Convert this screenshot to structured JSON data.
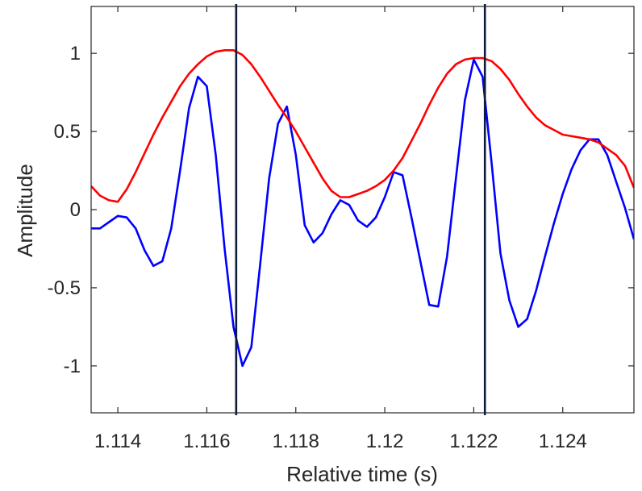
{
  "chart_data": {
    "type": "line",
    "xlabel": "Relative time (s)",
    "ylabel": "Amplitude",
    "xlim": [
      1.1134,
      1.1256
    ],
    "ylim": [
      -1.3,
      1.3
    ],
    "grid": false,
    "box": true,
    "xticks": [
      {
        "value": 1.114,
        "label": "1.114"
      },
      {
        "value": 1.116,
        "label": "1.116"
      },
      {
        "value": 1.118,
        "label": "1.118"
      },
      {
        "value": 1.12,
        "label": "1.12"
      },
      {
        "value": 1.122,
        "label": "1.122"
      },
      {
        "value": 1.124,
        "label": "1.124"
      }
    ],
    "yticks": [
      {
        "value": -1,
        "label": "-1"
      },
      {
        "value": -0.5,
        "label": "-0.5"
      },
      {
        "value": 0,
        "label": "0"
      },
      {
        "value": 0.5,
        "label": "0.5"
      },
      {
        "value": 1,
        "label": "1"
      }
    ],
    "series": [
      {
        "color": "#0000ff",
        "x": [
          1.1134,
          1.1136,
          1.1138,
          1.114,
          1.1142,
          1.1144,
          1.1146,
          1.1148,
          1.115,
          1.1152,
          1.1154,
          1.1156,
          1.1158,
          1.116,
          1.1162,
          1.1164,
          1.1166,
          1.1168,
          1.117,
          1.1172,
          1.1174,
          1.1176,
          1.1178,
          1.118,
          1.1182,
          1.1184,
          1.1186,
          1.1188,
          1.119,
          1.1192,
          1.1194,
          1.1196,
          1.1198,
          1.12,
          1.1202,
          1.1204,
          1.1206,
          1.1208,
          1.121,
          1.1212,
          1.1214,
          1.1216,
          1.1218,
          1.122,
          1.1222,
          1.1224,
          1.1226,
          1.1228,
          1.123,
          1.1232,
          1.1234,
          1.1236,
          1.1238,
          1.124,
          1.1242,
          1.1244,
          1.1246,
          1.1248,
          1.125,
          1.1252,
          1.1254,
          1.1256
        ],
        "y": [
          -0.12,
          -0.12,
          -0.08,
          -0.04,
          -0.05,
          -0.12,
          -0.26,
          -0.36,
          -0.33,
          -0.12,
          0.25,
          0.65,
          0.85,
          0.79,
          0.35,
          -0.25,
          -0.75,
          -1.0,
          -0.88,
          -0.35,
          0.2,
          0.55,
          0.66,
          0.35,
          -0.1,
          -0.21,
          -0.15,
          -0.03,
          0.06,
          0.03,
          -0.07,
          -0.11,
          -0.05,
          0.08,
          0.24,
          0.22,
          -0.05,
          -0.33,
          -0.61,
          -0.62,
          -0.3,
          0.2,
          0.7,
          0.96,
          0.85,
          0.3,
          -0.28,
          -0.58,
          -0.75,
          -0.7,
          -0.52,
          -0.3,
          -0.09,
          0.1,
          0.26,
          0.38,
          0.45,
          0.45,
          0.35,
          0.18,
          0.01,
          -0.19
        ]
      },
      {
        "color": "#ff0000",
        "x": [
          1.1134,
          1.1136,
          1.1138,
          1.114,
          1.1142,
          1.1144,
          1.1146,
          1.1148,
          1.115,
          1.1152,
          1.1154,
          1.1156,
          1.1158,
          1.116,
          1.1162,
          1.1164,
          1.1166,
          1.1168,
          1.117,
          1.1172,
          1.1174,
          1.1176,
          1.1178,
          1.118,
          1.1182,
          1.1184,
          1.1186,
          1.1188,
          1.119,
          1.1192,
          1.1194,
          1.1196,
          1.1198,
          1.12,
          1.1202,
          1.1204,
          1.1206,
          1.1208,
          1.121,
          1.1212,
          1.1214,
          1.1216,
          1.1218,
          1.122,
          1.1222,
          1.1224,
          1.1226,
          1.1228,
          1.123,
          1.1232,
          1.1234,
          1.1236,
          1.1238,
          1.124,
          1.1242,
          1.1244,
          1.1246,
          1.1248,
          1.125,
          1.1252,
          1.1254,
          1.1256
        ],
        "y": [
          0.15,
          0.09,
          0.06,
          0.05,
          0.13,
          0.24,
          0.36,
          0.48,
          0.59,
          0.69,
          0.79,
          0.87,
          0.93,
          0.98,
          1.01,
          1.02,
          1.02,
          0.99,
          0.93,
          0.85,
          0.76,
          0.67,
          0.59,
          0.5,
          0.4,
          0.3,
          0.2,
          0.12,
          0.08,
          0.08,
          0.1,
          0.12,
          0.15,
          0.19,
          0.25,
          0.33,
          0.44,
          0.55,
          0.67,
          0.78,
          0.87,
          0.93,
          0.96,
          0.97,
          0.97,
          0.95,
          0.9,
          0.83,
          0.74,
          0.66,
          0.59,
          0.54,
          0.51,
          0.48,
          0.47,
          0.46,
          0.45,
          0.43,
          0.39,
          0.35,
          0.28,
          0.14
        ]
      }
    ],
    "vlines": [
      {
        "x": 1.11666,
        "color": "#0d1b3d"
      },
      {
        "x": 1.12225,
        "color": "#0d1b3d"
      }
    ]
  }
}
